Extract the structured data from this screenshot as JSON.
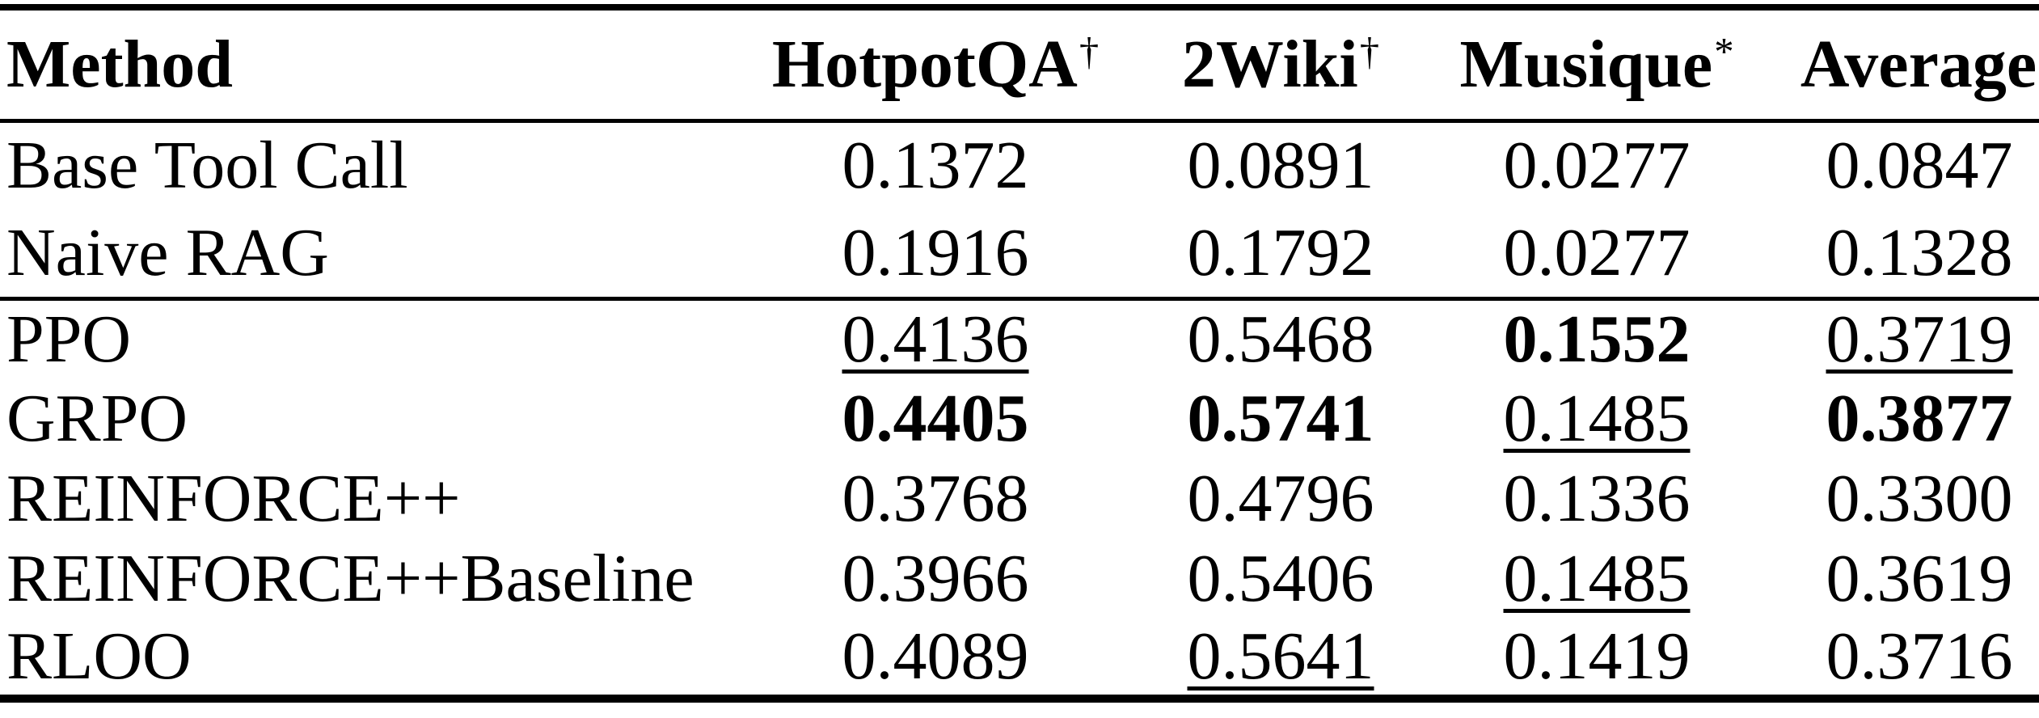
{
  "colors": {
    "background": "#ffffff",
    "text": "#000000",
    "rule": "#000000"
  },
  "table": {
    "header": {
      "method_label": "Method",
      "cols": [
        {
          "label": "HotpotQA",
          "sup": "†"
        },
        {
          "label": "2Wiki",
          "sup": "†"
        },
        {
          "label": "Musique",
          "sup": "*"
        },
        {
          "label": "Average",
          "sup": ""
        }
      ]
    },
    "groups": [
      {
        "name": "baselines",
        "rows": [
          {
            "method": "Base Tool Call",
            "cells": [
              {
                "text": "0.1372",
                "style": "normal"
              },
              {
                "text": "0.0891",
                "style": "normal"
              },
              {
                "text": "0.0277",
                "style": "normal"
              },
              {
                "text": "0.0847",
                "style": "normal"
              }
            ]
          },
          {
            "method": "Naive RAG",
            "cells": [
              {
                "text": "0.1916",
                "style": "normal"
              },
              {
                "text": "0.1792",
                "style": "normal"
              },
              {
                "text": "0.0277",
                "style": "normal"
              },
              {
                "text": "0.1328",
                "style": "normal"
              }
            ]
          }
        ]
      },
      {
        "name": "rl-methods",
        "rows": [
          {
            "method": "PPO",
            "cells": [
              {
                "text": "0.4136",
                "style": "underline"
              },
              {
                "text": "0.5468",
                "style": "normal"
              },
              {
                "text": "0.1552",
                "style": "bold"
              },
              {
                "text": "0.3719",
                "style": "underline"
              }
            ]
          },
          {
            "method": "GRPO",
            "cells": [
              {
                "text": "0.4405",
                "style": "bold"
              },
              {
                "text": "0.5741",
                "style": "bold"
              },
              {
                "text": "0.1485",
                "style": "underline"
              },
              {
                "text": "0.3877",
                "style": "bold"
              }
            ]
          },
          {
            "method": "REINFORCE++",
            "cells": [
              {
                "text": "0.3768",
                "style": "normal"
              },
              {
                "text": "0.4796",
                "style": "normal"
              },
              {
                "text": "0.1336",
                "style": "normal"
              },
              {
                "text": "0.3300",
                "style": "normal"
              }
            ]
          },
          {
            "method": "REINFORCE++Baseline",
            "cells": [
              {
                "text": "0.3966",
                "style": "normal"
              },
              {
                "text": "0.5406",
                "style": "normal"
              },
              {
                "text": "0.1485",
                "style": "underline"
              },
              {
                "text": "0.3619",
                "style": "normal"
              }
            ]
          },
          {
            "method": "RLOO",
            "cells": [
              {
                "text": "0.4089",
                "style": "normal"
              },
              {
                "text": "0.5641",
                "style": "underline"
              },
              {
                "text": "0.1419",
                "style": "normal"
              },
              {
                "text": "0.3716",
                "style": "normal"
              }
            ]
          }
        ]
      }
    ]
  }
}
